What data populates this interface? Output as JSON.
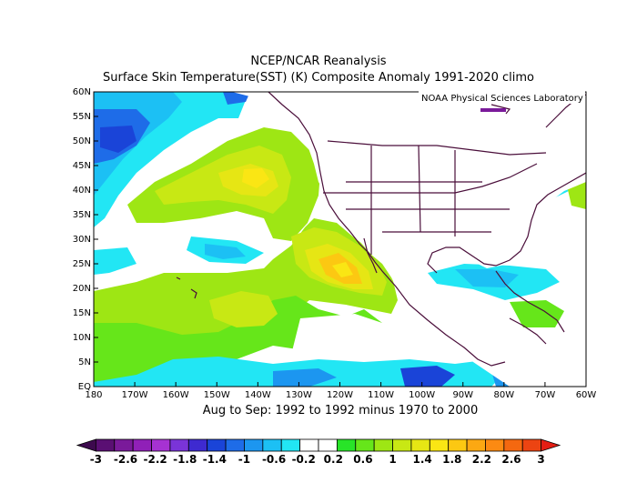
{
  "header": {
    "title": "NCEP/NCAR Reanalysis",
    "subtitle": "Surface Skin Temperature(SST) (K) Composite Anomaly 1991-2020 climo"
  },
  "map": {
    "credit": "NOAA Physical Sciences Laboratory",
    "region": {
      "lon_range": [
        180,
        300
      ],
      "lat_range": [
        0,
        60
      ]
    },
    "x_ticks": [
      "180",
      "170W",
      "160W",
      "150W",
      "140W",
      "130W",
      "120W",
      "110W",
      "100W",
      "90W",
      "80W",
      "70W",
      "60W"
    ],
    "y_ticks": [
      "60N",
      "55N",
      "50N",
      "45N",
      "40N",
      "35N",
      "30N",
      "25N",
      "20N",
      "15N",
      "10N",
      "5N",
      "EQ"
    ],
    "period_label": "Aug to Sep: 1992 to 1992 minus 1970 to 2000"
  },
  "colorbar": {
    "labels": [
      "-3",
      "-2.6",
      "-2.2",
      "-1.8",
      "-1.4",
      "-1",
      "-0.6",
      "-0.2",
      "0.2",
      "0.6",
      "1",
      "1.4",
      "1.8",
      "2.2",
      "2.6",
      "3"
    ],
    "colors": [
      "#3d0a4e",
      "#5a0f73",
      "#7a1a9a",
      "#9020b8",
      "#a632d2",
      "#7a34d8",
      "#3e2ad0",
      "#1a44d8",
      "#1e6ce8",
      "#1c96f0",
      "#1cc0f4",
      "#22e6f4",
      "#ffffff",
      "#ffffff",
      "#28e428",
      "#66e61a",
      "#9ee614",
      "#c8e814",
      "#e6e614",
      "#fae614",
      "#fcc812",
      "#fca812",
      "#fc8a12",
      "#f46810",
      "#ec4412",
      "#e41e14"
    ]
  }
}
